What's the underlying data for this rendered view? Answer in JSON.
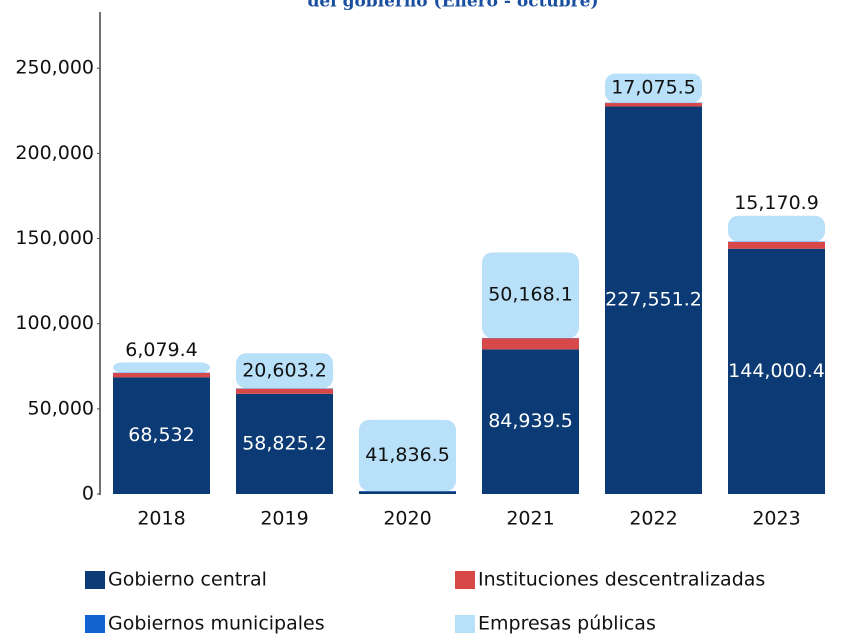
{
  "chart_data": {
    "type": "stacked_bar",
    "title": "del gobierno  (Enero - octubre)",
    "categories": [
      "2018",
      "2019",
      "2020",
      "2021",
      "2022",
      "2023"
    ],
    "series": [
      {
        "name": "Gobierno central",
        "color": "#0b3a74",
        "values": [
          68532,
          58825.2,
          1500,
          84939.5,
          227551.2,
          144000.4
        ],
        "value_labels": [
          "68,532",
          "58,825.2",
          null,
          "84,939.5",
          "227,551.2",
          "144,000.4"
        ]
      },
      {
        "name": "Instituciones descentralizadas",
        "color": "#d94848",
        "values": [
          2500,
          3000,
          0,
          6500,
          2000,
          4000
        ]
      },
      {
        "name": "Gobiernos municipales",
        "color": "#1262d2",
        "values": [
          200,
          200,
          200,
          200,
          200,
          200
        ]
      },
      {
        "name": "Empresas públicas",
        "color": "#b9e0f9",
        "values": [
          6079.4,
          20603.2,
          41836.5,
          50168.1,
          17075.5,
          15170.9
        ],
        "value_labels": [
          "6,079.4",
          "20,603.2",
          "41,836.5",
          "50,168.1",
          "17,075.5",
          "15,170.9"
        ]
      }
    ],
    "ylim": [
      0,
      283000
    ],
    "yticks": [
      0,
      {
        "value": 50000,
        "label": "50,000"
      },
      {
        "value": 100000,
        "label": "100,000"
      },
      {
        "value": 150000,
        "label": "150,000"
      },
      {
        "value": 200000,
        "label": "200,000"
      },
      {
        "value": 250000,
        "label": "250,000"
      }
    ],
    "legend": "bottom"
  }
}
